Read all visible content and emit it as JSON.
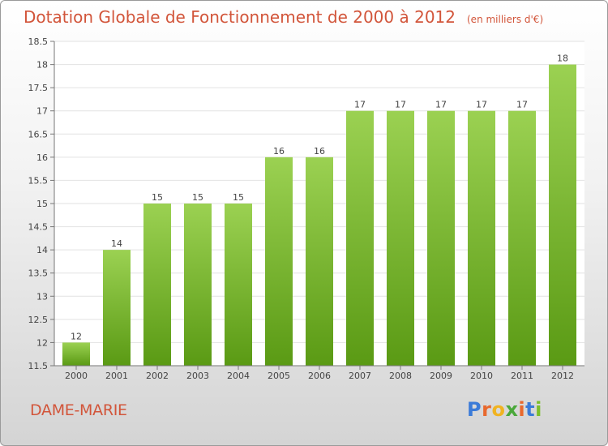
{
  "header": {
    "title": "Dotation Globale de Fonctionnement de 2000 à 2012",
    "subtitle": "(en milliers d'€)"
  },
  "footer": {
    "place": "DAME-MARIE",
    "logo_letters": [
      "P",
      "r",
      "o",
      "x",
      "i",
      "t",
      "i"
    ]
  },
  "colors": {
    "title": "#d2553a",
    "bar_top": "#9bd152",
    "bar_bottom": "#5a9a14",
    "logo": [
      "#3b7bd8",
      "#e8692e",
      "#f0b321",
      "#4aa83a",
      "#e8692e",
      "#3b7bd8",
      "#7bbf2a"
    ]
  },
  "chart_data": {
    "type": "bar",
    "categories": [
      "2000",
      "2001",
      "2002",
      "2003",
      "2004",
      "2005",
      "2006",
      "2007",
      "2008",
      "2009",
      "2010",
      "2011",
      "2012"
    ],
    "values": [
      12,
      14,
      15,
      15,
      15,
      16,
      16,
      17,
      17,
      17,
      17,
      17,
      18
    ],
    "value_labels": [
      "12",
      "14",
      "15",
      "15",
      "15",
      "16",
      "16",
      "17",
      "17",
      "17",
      "17",
      "17",
      "18"
    ],
    "ylim": [
      11.5,
      18.5
    ],
    "yticks": [
      11.5,
      12,
      12.5,
      13,
      13.5,
      14,
      14.5,
      15,
      15.5,
      16,
      16.5,
      17,
      17.5,
      18,
      18.5
    ],
    "ytick_labels": [
      "11.5",
      "12",
      "12.5",
      "13",
      "13.5",
      "14",
      "14.5",
      "15",
      "15.5",
      "16",
      "16.5",
      "17",
      "17.5",
      "18",
      "18.5"
    ],
    "grid": true,
    "legend": "none"
  }
}
